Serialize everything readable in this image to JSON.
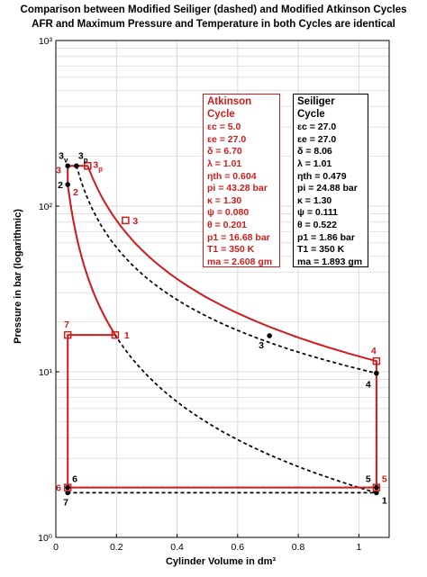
{
  "header": {
    "title_line1": "Comparison between Modified Seiliger (dashed) and Modified Atkinson Cycles",
    "title_line2": "AFR and Maximum Pressure and Temperature in both Cycles are identical"
  },
  "axes": {
    "xlabel": "Cylinder Volume in dm³",
    "ylabel": "Pressure in bar  (logarithmic)"
  },
  "colors": {
    "atkinson": "#d01c1c",
    "seiliger": "#000000",
    "grid": "#d9d9d9"
  },
  "atkinson_panel": {
    "title": "Atkinson Cycle",
    "lines": [
      "εc = 5.0",
      "εe = 27.0",
      "δ = 6.70",
      "λ = 1.01",
      "ηth = 0.604",
      "pi = 43.28 bar",
      "κ = 1.30",
      "ψ = 0.080",
      "θ = 0.201",
      "p1 = 16.68 bar",
      "T1 = 350 K",
      "ma = 2.608 gm"
    ]
  },
  "seiliger_panel": {
    "title": "Seiliger Cycle",
    "lines": [
      "εc = 27.0",
      "εe = 27.0",
      "δ = 8.06",
      "λ = 1.01",
      "ηth = 0.479",
      "pi = 24.88 bar",
      "κ = 1.30",
      "ψ = 0.111",
      "θ = 0.522",
      "p1 = 1.86 bar",
      "T1 = 350 K",
      "ma = 1.893 gm"
    ]
  },
  "chart_data": {
    "type": "line",
    "title": "Comparison between Modified Seiliger (dashed) and Modified Atkinson Cycles\nAFR and Maximum Pressure and Temperature in both Cycles are identical",
    "xlabel": "Cylinder Volume in dm³",
    "ylabel": "Pressure in bar  (logarithmic)",
    "xlim": [
      0,
      1.1
    ],
    "ylim": [
      1,
      1000
    ],
    "yscale": "log",
    "grid": true,
    "x_ticks": [
      "0",
      "0.2",
      "0.4",
      "0.6",
      "0.8",
      "1"
    ],
    "y_ticks": [
      "10⁰",
      "10¹",
      "10²",
      "10³"
    ],
    "series": [
      {
        "name": "Atkinson Cycle",
        "style": "solid",
        "color": "#d01c1c",
        "points": [
          {
            "label": "1",
            "x": 0.196,
            "y": 16.68
          },
          {
            "label": "2",
            "x": 0.0392,
            "y": 135.0
          },
          {
            "label": "3",
            "x": 0.0392,
            "y": 175.0
          },
          {
            "label": "3p",
            "x": 0.105,
            "y": 175.0
          },
          {
            "label": "3",
            "x": 0.23,
            "y": 82.0
          },
          {
            "label": "4",
            "x": 1.058,
            "y": 11.6
          },
          {
            "label": "5",
            "x": 1.058,
            "y": 2.0
          },
          {
            "label": "6",
            "x": 0.0392,
            "y": 2.0
          },
          {
            "label": "7",
            "x": 0.0392,
            "y": 16.68
          }
        ]
      },
      {
        "name": "Seiliger Cycle",
        "style": "dashed",
        "color": "#000000",
        "points": [
          {
            "label": "1",
            "x": 1.058,
            "y": 1.86
          },
          {
            "label": "2",
            "x": 0.0392,
            "y": 135.0
          },
          {
            "label": "3v",
            "x": 0.0392,
            "y": 175.0
          },
          {
            "label": "3p",
            "x": 0.068,
            "y": 175.0
          },
          {
            "label": "3",
            "x": 0.705,
            "y": 16.5
          },
          {
            "label": "4",
            "x": 1.058,
            "y": 9.8
          },
          {
            "label": "5",
            "x": 1.058,
            "y": 2.0
          },
          {
            "label": "6",
            "x": 0.0392,
            "y": 2.0
          },
          {
            "label": "7",
            "x": 0.0392,
            "y": 1.86
          }
        ]
      }
    ]
  }
}
